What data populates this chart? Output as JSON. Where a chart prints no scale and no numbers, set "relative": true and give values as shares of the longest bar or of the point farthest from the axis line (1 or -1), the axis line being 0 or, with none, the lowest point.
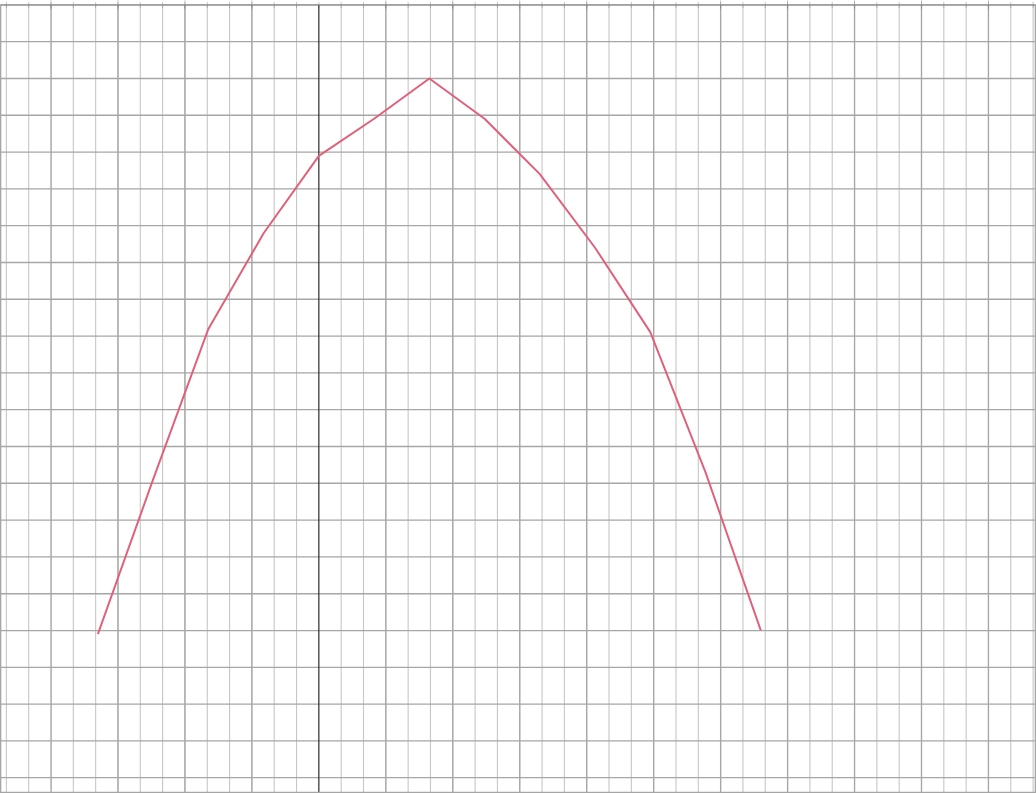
{
  "chart_data": {
    "type": "line",
    "relative": true,
    "categories": [
      null,
      null,
      null,
      null,
      null,
      null,
      null,
      null,
      null,
      null,
      null,
      null,
      null
    ],
    "series": [
      {
        "color": "#e0607a",
        "values": [
          -1,
          -0.754,
          -0.515,
          -0.363,
          -0.24,
          -0.181,
          -0.117,
          -0.181,
          -0.269,
          -0.386,
          -0.52,
          -0.743,
          -0.994
        ]
      }
    ],
    "grid": true,
    "line_style": "solid"
  }
}
